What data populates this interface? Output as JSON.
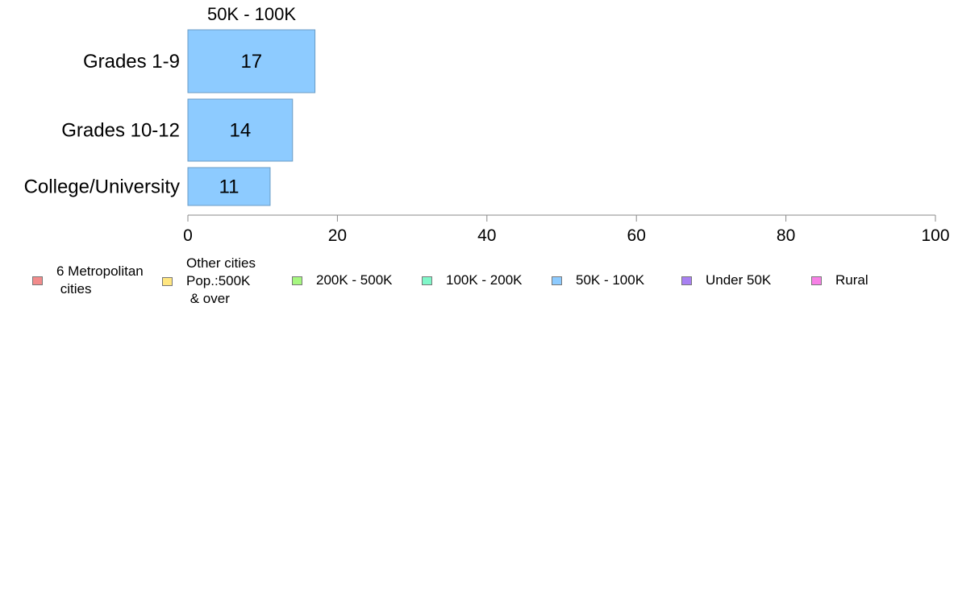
{
  "chart_data": {
    "type": "bar",
    "orientation": "horizontal",
    "title": "50K - 100K",
    "categories": [
      "Grades 1-9",
      "Grades 10-12",
      "College/University"
    ],
    "series": [
      {
        "name": "50K - 100K",
        "values": [
          17,
          14,
          11
        ],
        "color": "#8dcbff"
      }
    ],
    "xlim": [
      0,
      100
    ],
    "x_ticks": [
      0,
      20,
      40,
      60,
      80,
      100
    ],
    "grid": false,
    "legend_position": "bottom"
  },
  "legend": [
    {
      "label": "6 Metropolitan\n cities",
      "color": "#f28b8b"
    },
    {
      "label": "Other cities\nPop.:500K\n & over",
      "color": "#ffe680"
    },
    {
      "label": "200K - 500K",
      "color": "#a6f780"
    },
    {
      "label": "100K - 200K",
      "color": "#80f7c9"
    },
    {
      "label": "50K - 100K",
      "color": "#8dcbff"
    },
    {
      "label": "Under 50K",
      "color": "#a880f2"
    },
    {
      "label": "Rural",
      "color": "#f780e6"
    }
  ],
  "colors": {
    "axis": "#888888",
    "bar_border": "#6a9bc4"
  }
}
